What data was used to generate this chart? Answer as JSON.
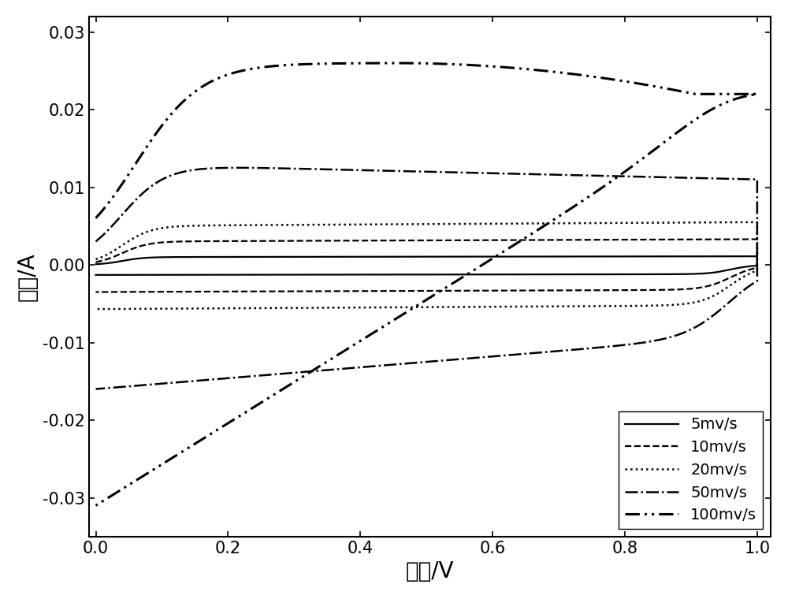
{
  "xlabel": "电位/V",
  "ylabel": "电流/A",
  "xlim": [
    -0.02,
    1.02
  ],
  "ylim": [
    -0.035,
    0.032
  ],
  "yticks": [
    -0.03,
    -0.02,
    -0.01,
    0.0,
    0.01,
    0.02,
    0.03
  ],
  "xticks": [
    0.0,
    0.2,
    0.4,
    0.6,
    0.8,
    1.0
  ],
  "legend_labels": [
    "5mv/s",
    "10mv/s",
    "20mv/s",
    "50mv/s",
    "100mv/s"
  ],
  "background_color": "white",
  "font_size_labels": 20,
  "font_size_ticks": 15,
  "font_size_legend": 14,
  "cv_curves": [
    {
      "label": "5mv/s",
      "linestyle": "-",
      "linewidth": 1.6,
      "I_upper": 0.001,
      "I_lower": -0.0012,
      "I_upper_end": 0.001,
      "I_lower_end": -0.0012,
      "slope_up": 0.0001,
      "slope_down": -0.0001,
      "sharp": 60
    },
    {
      "label": "10mv/s",
      "linestyle": "--",
      "linewidth": 1.6,
      "I_upper": 0.003,
      "I_lower": -0.0032,
      "I_upper_end": 0.0028,
      "I_lower_end": -0.003,
      "slope_up": 0.0003,
      "slope_down": -0.0003,
      "sharp": 50
    },
    {
      "label": "20mv/s",
      "linestyle": ":",
      "linewidth": 1.8,
      "I_upper": 0.005,
      "I_lower": -0.0052,
      "I_upper_end": 0.0048,
      "I_lower_end": -0.005,
      "slope_up": 0.0005,
      "slope_down": -0.0005,
      "sharp": 45
    },
    {
      "label": "50mv/s",
      "linestyle": "-.",
      "linewidth": 1.8,
      "I_upper": 0.013,
      "I_lower": -0.016,
      "I_upper_end": 0.011,
      "I_lower_end": -0.015,
      "slope_up": 0.002,
      "slope_down": -0.002,
      "sharp": 30
    },
    {
      "label": "100mv/s",
      "linestyle": "--",
      "linewidth": 2.2,
      "I_upper": 0.025,
      "I_lower": -0.031,
      "I_upper_end": 0.022,
      "I_lower_end": -0.031,
      "slope_up": 0.005,
      "slope_down": -0.01,
      "sharp": 20
    }
  ]
}
